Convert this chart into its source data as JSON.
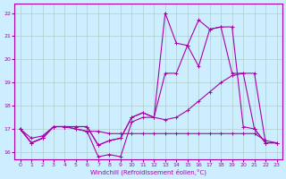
{
  "xlabel": "Windchill (Refroidissement éolien,°C)",
  "background_color": "#cceeff",
  "grid_color": "#b0cccc",
  "line_color": "#aa00aa",
  "xlim": [
    -0.5,
    23.5
  ],
  "ylim": [
    15.7,
    22.4
  ],
  "xticks": [
    0,
    1,
    2,
    3,
    4,
    5,
    6,
    7,
    8,
    9,
    10,
    11,
    12,
    13,
    14,
    15,
    16,
    17,
    18,
    19,
    20,
    21,
    22,
    23
  ],
  "yticks": [
    16,
    17,
    18,
    19,
    20,
    21,
    22
  ],
  "series": [
    {
      "x": [
        0,
        1,
        2,
        3,
        4,
        5,
        6,
        7,
        8,
        9,
        10,
        11,
        12,
        13,
        14,
        15,
        16,
        17,
        18,
        19,
        20,
        21,
        22,
        23
      ],
      "y": [
        17.0,
        16.4,
        16.6,
        17.1,
        17.1,
        17.0,
        16.9,
        16.9,
        16.8,
        16.8,
        16.8,
        16.8,
        16.8,
        16.8,
        16.8,
        16.8,
        16.8,
        16.8,
        16.8,
        16.8,
        16.8,
        16.8,
        16.5,
        16.4
      ]
    },
    {
      "x": [
        0,
        1,
        2,
        3,
        4,
        5,
        6,
        7,
        8,
        9,
        10,
        11,
        12,
        13,
        14,
        15,
        16,
        17,
        18,
        19,
        20,
        21,
        22,
        23
      ],
      "y": [
        17.0,
        16.4,
        16.6,
        17.1,
        17.1,
        17.0,
        16.9,
        15.8,
        15.9,
        15.8,
        17.3,
        17.5,
        17.5,
        17.4,
        17.5,
        17.8,
        18.2,
        18.6,
        19.0,
        19.3,
        19.4,
        19.4,
        16.4,
        16.4
      ]
    },
    {
      "x": [
        0,
        1,
        2,
        3,
        4,
        5,
        6,
        7,
        8,
        9,
        10,
        11,
        12,
        13,
        14,
        15,
        16,
        17,
        18,
        19,
        20,
        21,
        22,
        23
      ],
      "y": [
        17.0,
        16.6,
        16.7,
        17.1,
        17.1,
        17.1,
        17.1,
        16.3,
        16.5,
        16.6,
        17.5,
        17.7,
        17.5,
        19.4,
        19.4,
        20.6,
        19.7,
        21.3,
        21.4,
        19.4,
        19.4,
        17.0,
        16.4,
        16.4
      ]
    },
    {
      "x": [
        0,
        1,
        2,
        3,
        4,
        5,
        6,
        7,
        8,
        9,
        10,
        11,
        12,
        13,
        14,
        15,
        16,
        17,
        18,
        19,
        20,
        21,
        22
      ],
      "y": [
        17.0,
        16.4,
        16.6,
        17.1,
        17.1,
        17.1,
        17.1,
        16.3,
        16.5,
        16.6,
        17.5,
        17.7,
        17.5,
        22.0,
        20.7,
        20.6,
        21.7,
        21.3,
        21.4,
        21.4,
        17.1,
        17.0,
        16.4
      ]
    }
  ]
}
